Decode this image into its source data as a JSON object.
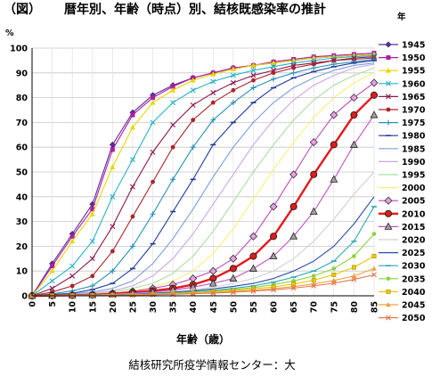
{
  "chart_data": {
    "type": "line",
    "figure_label": "（図）",
    "title": "暦年別、年齢（時点）別、結核既感染率の推計",
    "ylabel": "%",
    "xlabel": "年齢（歳）",
    "legend_title": "年",
    "source": "結核研究所疫学情報センター：大",
    "x": [
      0,
      5,
      10,
      15,
      20,
      25,
      30,
      35,
      40,
      45,
      50,
      55,
      60,
      65,
      70,
      75,
      80,
      85
    ],
    "xlim": [
      0,
      85
    ],
    "ylim": [
      0,
      100
    ],
    "yticks": [
      0,
      10,
      20,
      30,
      40,
      50,
      60,
      70,
      80,
      90,
      100
    ],
    "grid": true,
    "legend_position": "right",
    "series": [
      {
        "name": "1945",
        "color": "#5a2aa8",
        "marker": "diamond",
        "values": [
          0,
          13,
          25,
          37,
          61,
          74,
          81,
          85,
          88,
          90,
          92,
          93,
          94,
          95,
          96,
          96.5,
          97,
          97.5
        ]
      },
      {
        "name": "1950",
        "color": "#b01e9a",
        "marker": "square",
        "values": [
          0,
          12,
          24,
          35,
          59,
          73,
          80,
          84.5,
          88,
          90,
          92,
          93,
          94.5,
          95.5,
          96.5,
          97,
          97.5,
          98
        ]
      },
      {
        "name": "1955",
        "color": "#e6d800",
        "marker": "triangle",
        "values": [
          0,
          10,
          22,
          33,
          52,
          68,
          78,
          83,
          87,
          89.5,
          91.5,
          93,
          94,
          95,
          96,
          96.5,
          97,
          97.5
        ]
      },
      {
        "name": "1960",
        "color": "#27b2c8",
        "marker": "x",
        "values": [
          0,
          6,
          12,
          22,
          40,
          55,
          70,
          78,
          83,
          86.5,
          89,
          91,
          92.5,
          94,
          95,
          96,
          96.5,
          97
        ]
      },
      {
        "name": "1965",
        "color": "#8a1a4e",
        "marker": "x",
        "values": [
          0,
          3,
          8,
          15,
          28,
          44,
          58,
          69,
          77,
          82,
          86,
          89,
          91,
          93,
          94,
          95,
          96,
          96.5
        ]
      },
      {
        "name": "1970",
        "color": "#a8262a",
        "marker": "circle",
        "values": [
          0,
          1.5,
          4,
          8,
          18,
          32,
          46,
          60,
          71,
          78,
          83,
          87,
          90,
          92,
          93.5,
          95,
          95.5,
          96
        ]
      },
      {
        "name": "1975",
        "color": "#2a8fb8",
        "marker": "plus",
        "values": [
          0,
          0.8,
          2,
          4,
          10,
          20,
          33,
          47,
          60,
          71,
          78,
          84,
          87.5,
          90,
          92,
          93.5,
          94.5,
          95.5
        ]
      },
      {
        "name": "1980",
        "color": "#1f3a9a",
        "marker": "dash",
        "values": [
          0,
          0.5,
          1,
          2.5,
          5,
          11,
          21,
          34,
          47,
          61,
          70,
          78,
          84,
          88,
          90.5,
          92.5,
          94,
          95
        ]
      },
      {
        "name": "1985",
        "color": "#7a9ed8",
        "marker": "none",
        "values": [
          0,
          0.3,
          0.7,
          1.5,
          3,
          6,
          13,
          23,
          35,
          48,
          60,
          70,
          78,
          84,
          88,
          91,
          93,
          94
        ]
      },
      {
        "name": "1990",
        "color": "#c8a6e8",
        "marker": "none",
        "values": [
          0,
          0.2,
          0.5,
          1,
          2,
          4,
          8,
          15,
          25,
          37,
          49,
          61,
          71,
          79,
          85,
          89,
          92,
          93.5
        ]
      },
      {
        "name": "1995",
        "color": "#a8e0a0",
        "marker": "none",
        "values": [
          0,
          0.2,
          0.4,
          0.8,
          1.5,
          3,
          5,
          9,
          16,
          26,
          38,
          50,
          61,
          71,
          79,
          85,
          89,
          92
        ]
      },
      {
        "name": "2000",
        "color": "#f5f07a",
        "marker": "none",
        "values": [
          0,
          0.1,
          0.3,
          0.6,
          1.2,
          2,
          3.5,
          6,
          10,
          17,
          27,
          39,
          51,
          62,
          72,
          80,
          86,
          90
        ]
      },
      {
        "name": "2005",
        "color": "#c04ab8",
        "marker": "diamond-light",
        "values": [
          0,
          0.1,
          0.3,
          0.5,
          1,
          1.8,
          3,
          4.5,
          7,
          10,
          15,
          24,
          36,
          49,
          62,
          73,
          80,
          86
        ]
      },
      {
        "name": "2010",
        "color": "#e31a1c",
        "marker": "circle-red",
        "values": [
          0,
          0.1,
          0.2,
          0.4,
          0.8,
          1.3,
          2,
          3,
          4.5,
          7,
          11,
          16,
          24,
          36,
          49,
          61,
          73,
          81
        ]
      },
      {
        "name": "2015",
        "color": "#c050c8",
        "marker": "triangle-gray",
        "values": [
          0,
          0.1,
          0.2,
          0.3,
          0.6,
          1,
          1.5,
          2.3,
          3.5,
          5,
          7,
          11,
          16,
          24,
          34,
          47,
          61,
          73
        ]
      },
      {
        "name": "2020",
        "color": "#d0d0d0",
        "marker": "none",
        "values": [
          0,
          0.1,
          0.2,
          0.3,
          0.5,
          0.8,
          1.2,
          1.8,
          2.6,
          3.5,
          5,
          7,
          10,
          15,
          22,
          31,
          41,
          50
        ]
      },
      {
        "name": "2025",
        "color": "#2a4ea8",
        "marker": "none",
        "values": [
          0,
          0.1,
          0.15,
          0.25,
          0.4,
          0.6,
          1,
          1.4,
          2,
          2.8,
          3.8,
          5,
          7,
          10,
          14,
          20,
          29,
          40
        ]
      },
      {
        "name": "2030",
        "color": "#2aa8b8",
        "marker": "dash",
        "values": [
          0,
          0.1,
          0.15,
          0.2,
          0.3,
          0.5,
          0.8,
          1.1,
          1.6,
          2.2,
          3,
          4,
          5.5,
          7.5,
          10,
          14,
          22,
          36
        ]
      },
      {
        "name": "2035",
        "color": "#8ed040",
        "marker": "circle-green",
        "values": [
          0,
          0.05,
          0.1,
          0.2,
          0.3,
          0.45,
          0.7,
          1,
          1.4,
          1.9,
          2.5,
          3.3,
          4.5,
          6,
          8,
          11,
          16,
          25
        ]
      },
      {
        "name": "2040",
        "color": "#e8c800",
        "marker": "square-yellow",
        "values": [
          0,
          0.05,
          0.1,
          0.15,
          0.25,
          0.4,
          0.6,
          0.85,
          1.2,
          1.6,
          2.1,
          2.8,
          3.6,
          4.8,
          6.3,
          8.5,
          11.5,
          16
        ]
      },
      {
        "name": "2045",
        "color": "#f0a040",
        "marker": "triangle-orange",
        "values": [
          0,
          0.05,
          0.1,
          0.15,
          0.2,
          0.35,
          0.5,
          0.7,
          1,
          1.3,
          1.7,
          2.2,
          2.9,
          3.7,
          4.8,
          6.2,
          8,
          11
        ]
      },
      {
        "name": "2050",
        "color": "#e07a50",
        "marker": "x",
        "values": [
          0,
          0.05,
          0.08,
          0.12,
          0.18,
          0.3,
          0.45,
          0.6,
          0.85,
          1.1,
          1.45,
          1.9,
          2.4,
          3.1,
          4,
          5.1,
          6.6,
          8.5
        ]
      }
    ]
  }
}
